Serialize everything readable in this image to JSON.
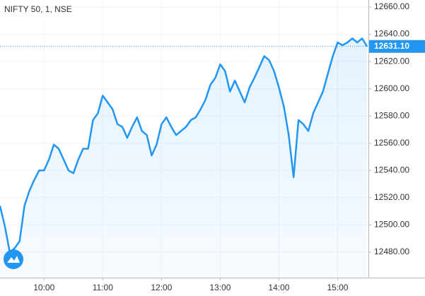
{
  "chart_data": {
    "type": "line",
    "title": "NIFTY 50, 1, NSE",
    "x": [
      "09:15",
      "09:20",
      "09:25",
      "09:30",
      "09:35",
      "09:40",
      "09:45",
      "09:50",
      "09:55",
      "10:00",
      "10:05",
      "10:10",
      "10:15",
      "10:20",
      "10:25",
      "10:30",
      "10:35",
      "10:40",
      "10:45",
      "10:50",
      "10:55",
      "11:00",
      "11:05",
      "11:10",
      "11:15",
      "11:20",
      "11:25",
      "11:30",
      "11:35",
      "11:40",
      "11:45",
      "11:50",
      "11:55",
      "12:00",
      "12:05",
      "12:10",
      "12:15",
      "12:20",
      "12:25",
      "12:30",
      "12:35",
      "12:40",
      "12:45",
      "12:50",
      "12:55",
      "13:00",
      "13:05",
      "13:10",
      "13:15",
      "13:20",
      "13:25",
      "13:30",
      "13:35",
      "13:40",
      "13:45",
      "13:50",
      "13:55",
      "14:00",
      "14:05",
      "14:10",
      "14:15",
      "14:20",
      "14:25",
      "14:30",
      "14:35",
      "14:40",
      "14:45",
      "14:50",
      "14:55",
      "15:00",
      "15:05",
      "15:10",
      "15:15",
      "15:20",
      "15:25",
      "15:30"
    ],
    "series": [
      {
        "name": "NIFTY 50",
        "color": "#2196f3",
        "values": [
          12514,
          12499,
          12480,
          12483,
          12488,
          12514,
          12525,
          12533,
          12540,
          12540,
          12548,
          12559,
          12556,
          12548,
          12540,
          12538,
          12548,
          12556,
          12556,
          12577,
          12582,
          12595,
          12590,
          12585,
          12574,
          12572,
          12564,
          12572,
          12579,
          12569,
          12566,
          12551,
          12559,
          12574,
          12579,
          12572,
          12566,
          12569,
          12572,
          12577,
          12579,
          12585,
          12592,
          12603,
          12608,
          12618,
          12613,
          12598,
          12606,
          12598,
          12590,
          12601,
          12608,
          12616,
          12624,
          12621,
          12613,
          12601,
          12587,
          12566,
          12535,
          12577,
          12574,
          12569,
          12582,
          12590,
          12598,
          12611,
          12624,
          12634,
          12632,
          12634,
          12637,
          12634,
          12637,
          12631.1
        ]
      }
    ],
    "last_price": {
      "value": 12631.1,
      "label": "12631.10"
    },
    "xlim": [
      "09:15",
      "15:30"
    ],
    "xticks": [
      "10:00",
      "11:00",
      "12:00",
      "13:00",
      "14:00",
      "15:00"
    ],
    "ylim": [
      12461.3,
      12665.2
    ],
    "yticks": [
      {
        "value": 12480,
        "label": "12480.00"
      },
      {
        "value": 12500,
        "label": "12500.00"
      },
      {
        "value": 12520,
        "label": "12520.00"
      },
      {
        "value": 12540,
        "label": "12540.00"
      },
      {
        "value": 12560,
        "label": "12560.00"
      },
      {
        "value": 12580,
        "label": "12580.00"
      },
      {
        "value": 12600,
        "label": "12600.00"
      },
      {
        "value": 12620,
        "label": "12620.00"
      },
      {
        "value": 12640,
        "label": "12640.00"
      },
      {
        "value": 12660,
        "label": "12660.00"
      }
    ],
    "grid": true
  }
}
